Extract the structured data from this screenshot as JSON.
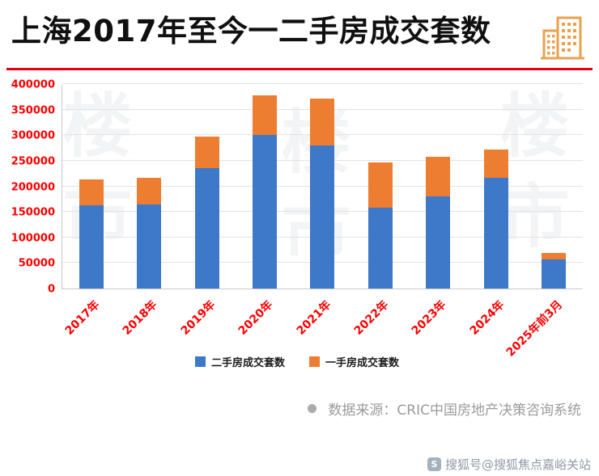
{
  "header": {
    "title": "上海2017年至今一二手房成交套数"
  },
  "watermark": {
    "text": "楼市"
  },
  "chart_data": {
    "type": "bar",
    "stacked": true,
    "title": "上海2017年至今一二手房成交套数",
    "categories": [
      "2017年",
      "2018年",
      "2019年",
      "2020年",
      "2021年",
      "2022年",
      "2023年",
      "2024年",
      "2025年前3月"
    ],
    "series": [
      {
        "name": "二手房成交套数",
        "color": "#3e78c8",
        "values": [
          163000,
          165000,
          236000,
          300000,
          280000,
          158000,
          180000,
          216000,
          57000
        ]
      },
      {
        "name": "一手房成交套数",
        "color": "#ed7d31",
        "values": [
          50000,
          52000,
          62000,
          78000,
          92000,
          88000,
          78000,
          56000,
          13000
        ]
      }
    ],
    "xlabel": "",
    "ylabel": "",
    "ylim": [
      0,
      400000
    ],
    "ytick_step": 50000,
    "grid": true,
    "legend_position": "bottom"
  },
  "footer": {
    "source": "数据来源：CRIC中国房地产决策咨询系统"
  },
  "attribution": {
    "text": "搜狐号@搜狐焦点嘉峪关站",
    "badge": "S"
  },
  "colors": {
    "accent_red": "#e60012",
    "axis_label_red": "#fe0000",
    "bar_blue": "#3e78c8",
    "bar_orange": "#ed7d31",
    "icon_orange": "#eaa14e"
  }
}
